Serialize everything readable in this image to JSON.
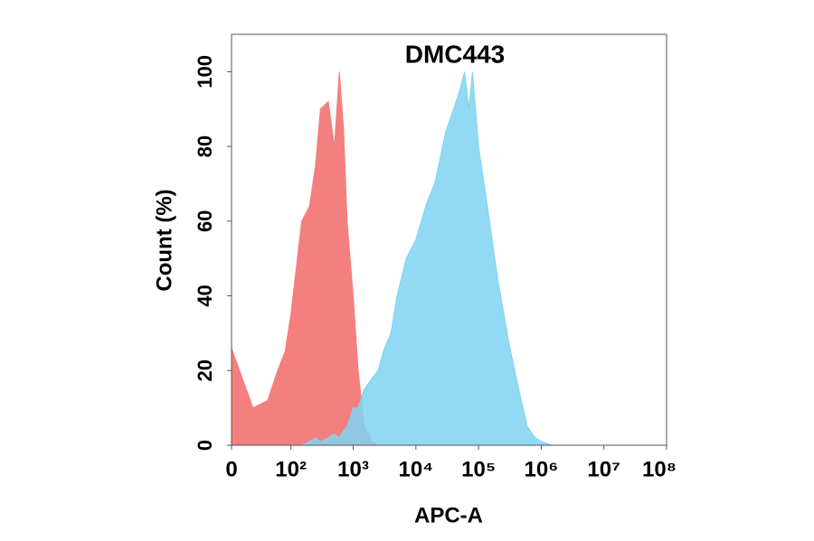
{
  "chart_data": {
    "type": "area",
    "title": "DMC443",
    "xlabel": "APC-A",
    "ylabel": "Count  (%)",
    "xscale": "biexponential",
    "x": [
      0,
      20,
      40,
      60,
      80,
      100,
      150,
      200,
      250,
      300,
      400,
      500,
      600,
      700,
      800,
      1000,
      1200,
      1500,
      2000,
      2500,
      3000,
      4000,
      5000,
      7000,
      10000,
      15000,
      20000,
      30000,
      40000,
      50000,
      60000,
      70000,
      80000,
      100000,
      150000,
      200000,
      300000,
      400000,
      600000,
      800000,
      1000000,
      1500000,
      2000000,
      100000000
    ],
    "series": [
      {
        "color": "#f47f7f",
        "values": [
          26,
          10,
          12,
          20,
          25,
          35,
          60,
          64,
          75,
          90,
          92,
          80,
          100,
          85,
          60,
          40,
          20,
          5,
          1,
          0,
          0,
          0,
          0,
          0,
          0,
          0,
          0,
          0,
          0,
          0,
          0,
          0,
          0,
          0,
          0,
          0,
          0,
          0,
          0,
          0,
          0,
          0,
          0,
          0
        ]
      },
      {
        "color": "#7fd3f1",
        "values": [
          0,
          0,
          0,
          0,
          0,
          0,
          0,
          1,
          2,
          1,
          2,
          3,
          2,
          4,
          5,
          10,
          10,
          15,
          18,
          20,
          25,
          30,
          40,
          50,
          55,
          65,
          70,
          84,
          90,
          95,
          100,
          90,
          100,
          80,
          60,
          45,
          28,
          18,
          5,
          2,
          1,
          0,
          0,
          0
        ]
      }
    ],
    "xlim": [
      0,
      100000000
    ],
    "xticks": [
      0,
      {
        "value": 100,
        "label": "10²"
      },
      {
        "value": 1000,
        "label": "10³"
      },
      {
        "value": 10000,
        "label": "10⁴"
      },
      {
        "value": 100000,
        "label": "10⁵"
      },
      {
        "value": 1000000,
        "label": "10⁶"
      },
      {
        "value": 10000000,
        "label": "10⁷"
      },
      {
        "value": 100000000,
        "label": "10⁸"
      }
    ],
    "ylim": [
      0,
      110
    ],
    "yticks": [
      0,
      20,
      40,
      60,
      80,
      100
    ],
    "grid": false
  }
}
